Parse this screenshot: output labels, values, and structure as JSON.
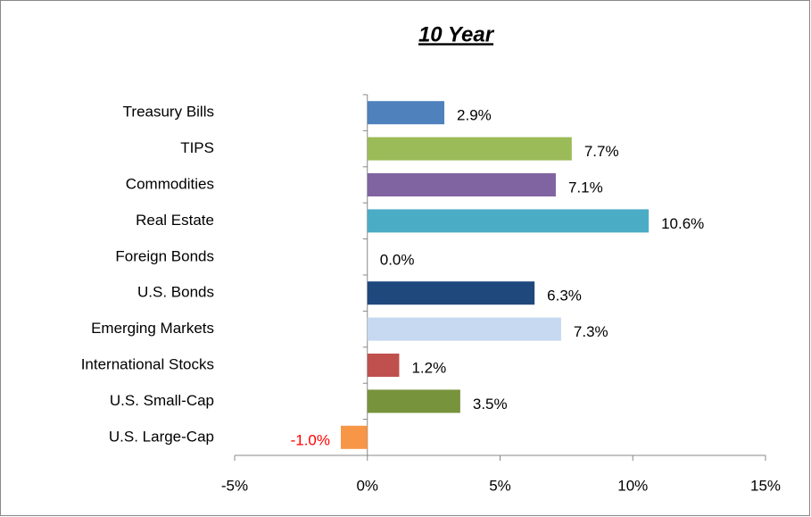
{
  "chart_data": {
    "type": "hbar",
    "title": "10 Year",
    "categories": [
      "Treasury Bills",
      "TIPS",
      "Commodities",
      "Real Estate",
      "Foreign Bonds",
      "U.S. Bonds",
      "Emerging Markets",
      "International Stocks",
      "U.S. Small-Cap",
      "U.S. Large-Cap"
    ],
    "values": [
      2.9,
      7.7,
      7.1,
      10.6,
      0.0,
      6.3,
      7.3,
      1.2,
      3.5,
      -1.0
    ],
    "value_labels": [
      "2.9%",
      "7.7%",
      "7.1%",
      "10.6%",
      "0.0%",
      "6.3%",
      "7.3%",
      "1.2%",
      "3.5%",
      "-1.0%"
    ],
    "colors": [
      "#4f81bd",
      "#9bbb59",
      "#8064a2",
      "#4bacc6",
      "#4f81bd",
      "#1f497d",
      "#c6d9f1",
      "#c0504d",
      "#77933c",
      "#f79646"
    ],
    "negative_label_color": "#ff0000",
    "xlim": [
      -5,
      15
    ],
    "xticks": [
      {
        "value": -5,
        "label": "-5%"
      },
      {
        "value": 0,
        "label": "0%"
      },
      {
        "value": 5,
        "label": "5%"
      },
      {
        "value": 10,
        "label": "10%"
      },
      {
        "value": 15,
        "label": "15%"
      }
    ]
  }
}
